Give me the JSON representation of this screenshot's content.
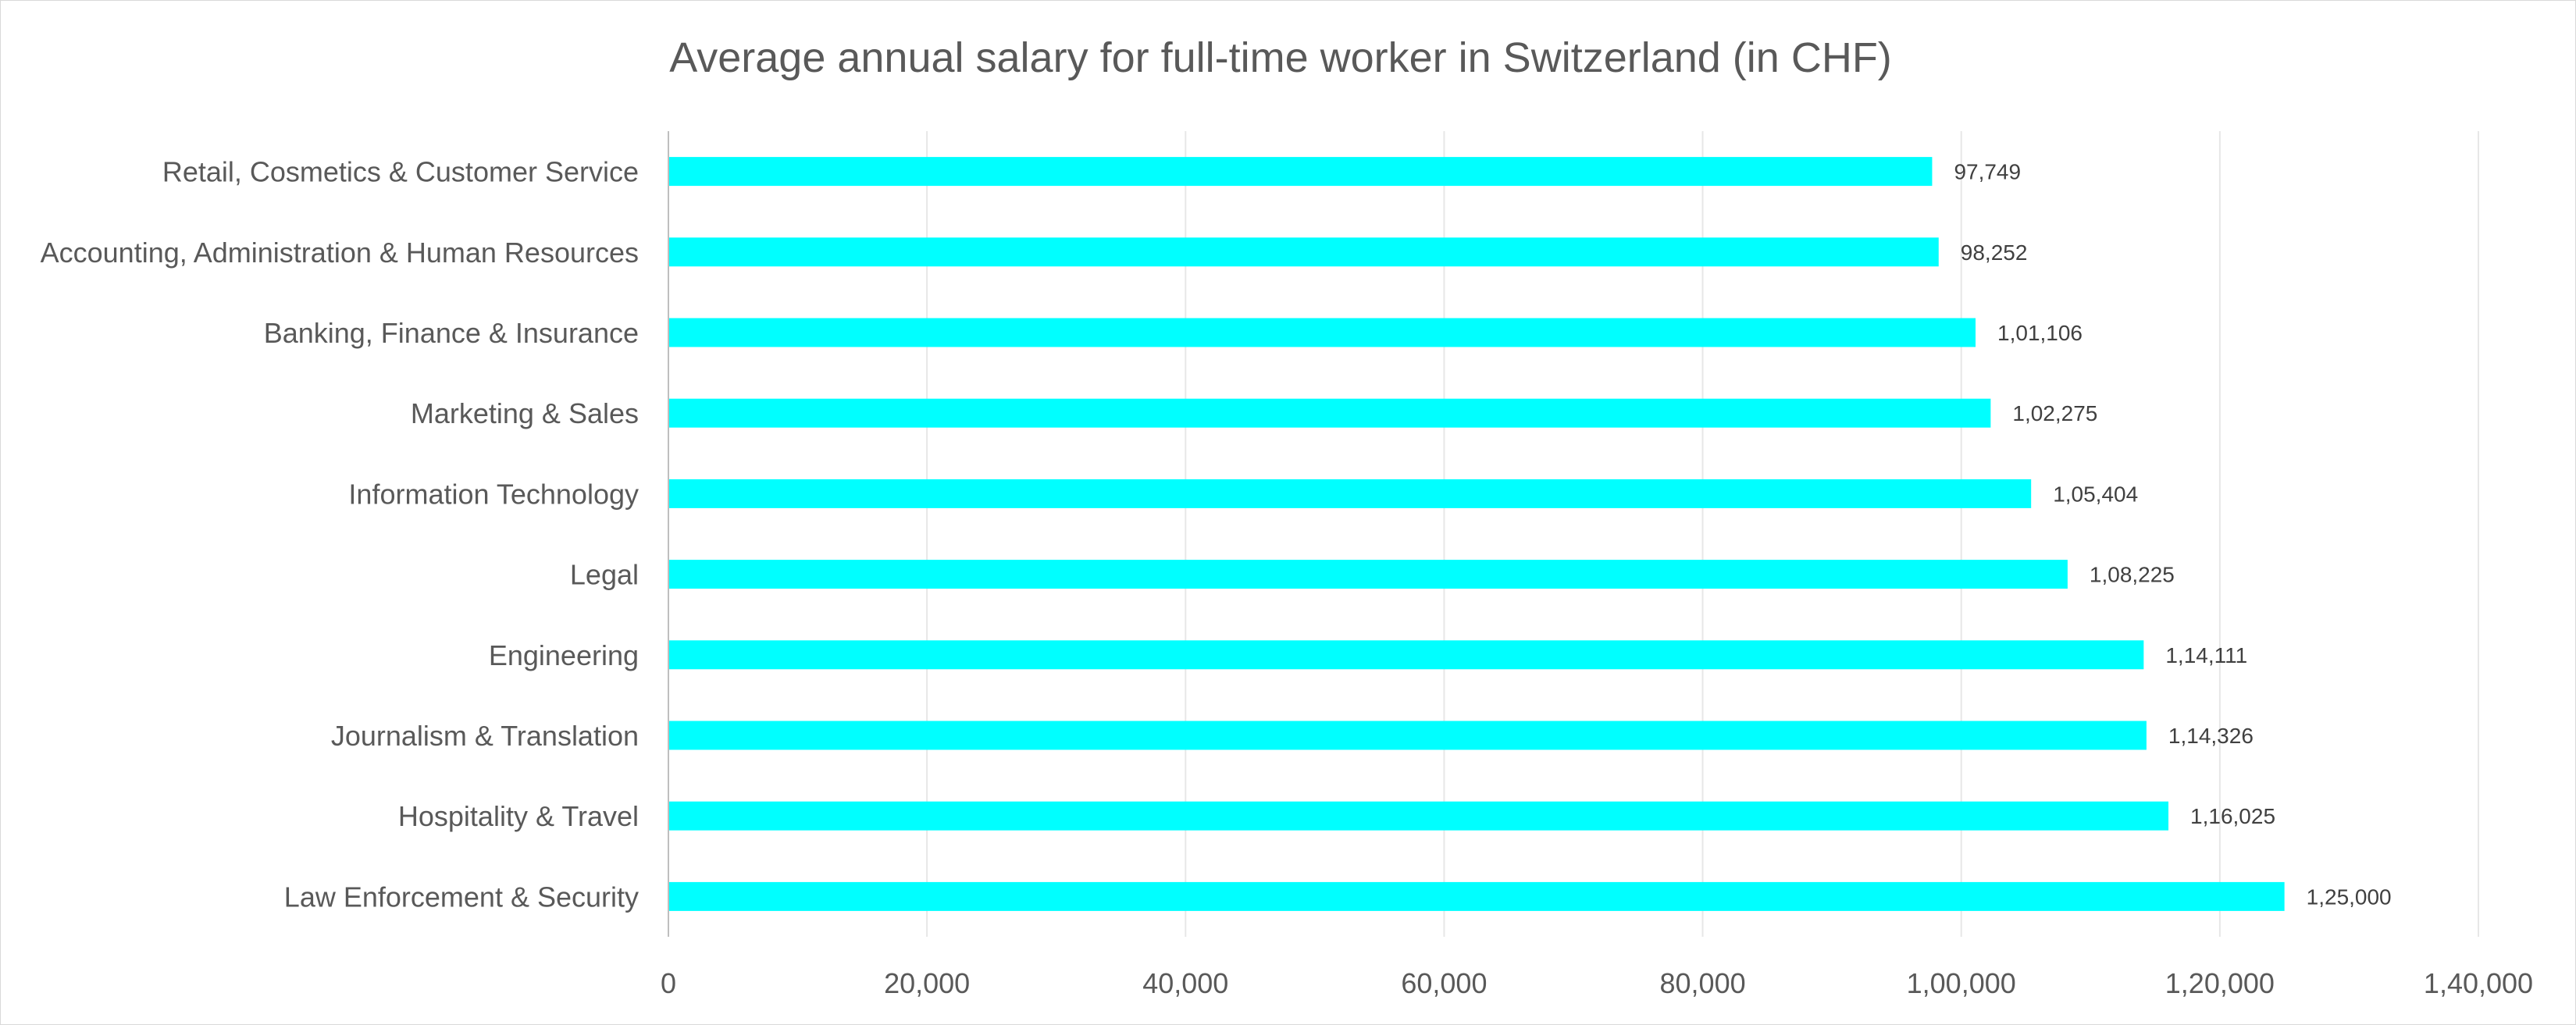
{
  "chart_data": {
    "type": "bar",
    "orientation": "horizontal",
    "title": "Average annual salary for full-time worker in Switzerland (in CHF)",
    "xlabel": "",
    "ylabel": "",
    "xlim": [
      0,
      140000
    ],
    "ticks": [
      0,
      20000,
      40000,
      60000,
      80000,
      100000,
      120000,
      140000
    ],
    "tick_labels": [
      "0",
      "20,000",
      "40,000",
      "60,000",
      "80,000",
      "1,00,000",
      "1,20,000",
      "1,40,000"
    ],
    "categories": [
      "Retail, Cosmetics & Customer Service",
      "Accounting, Administration & Human Resources",
      "Banking, Finance & Insurance",
      "Marketing & Sales",
      "Information Technology",
      "Legal",
      "Engineering",
      "Journalism & Translation",
      "Hospitality & Travel",
      "Law Enforcement & Security"
    ],
    "values": [
      97749,
      98252,
      101106,
      102275,
      105404,
      108225,
      114111,
      114326,
      116025,
      125000
    ],
    "value_labels": [
      "97,749",
      "98,252",
      "1,01,106",
      "1,02,275",
      "1,05,404",
      "1,08,225",
      "1,14,111",
      "1,14,326",
      "1,16,025",
      "1,25,000"
    ],
    "bar_color": "#00FFFF",
    "grid": true,
    "legend": "none"
  }
}
